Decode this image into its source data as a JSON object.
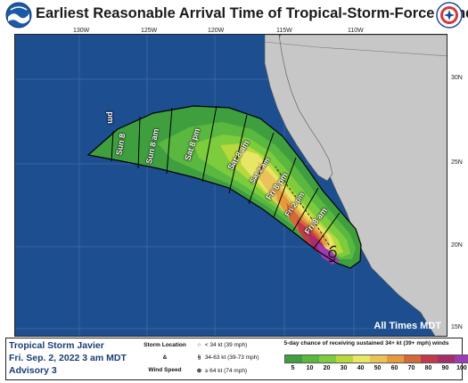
{
  "header": {
    "title": "Earliest Reasonable Arrival Time of Tropical-Storm-Force Winds",
    "logo_left_icon": "noaa-logo-icon",
    "logo_right_icon": "nws-logo-icon"
  },
  "map": {
    "longitude_labels": [
      "130W",
      "125W",
      "120W",
      "115W",
      "110W"
    ],
    "latitude_labels": [
      "30N",
      "25N",
      "20N",
      "15N"
    ],
    "time_labels": [
      "pm",
      "Sun 8",
      "Sun 8 am",
      "Sat 8 pm",
      "Sat 8 am",
      "Sat 2 am",
      "Fri 8 pm",
      "Fri 2 pm",
      "Fri 8 am"
    ],
    "all_times_label": "All Times MDT",
    "colors": {
      "ocean": "#1d4e8f",
      "land": "#c7c7c7",
      "outline": "#000000"
    }
  },
  "legend": {
    "storm_name": "Tropical Storm Javier",
    "date": "Fri. Sep. 2, 2022  3 am MDT",
    "advisory": "Advisory 3",
    "storm_location_label": "Storm Location",
    "ampersand": "&",
    "wind_speed_label": "Wind Speed",
    "speed_rows": [
      {
        "symbol": "○",
        "text": "< 34 kt (39 mph)"
      },
      {
        "symbol": "§",
        "text": "34-63 kt (39-73 mph)"
      },
      {
        "symbol": "⊛",
        "text": "≥ 64 kt (74 mph)"
      }
    ],
    "probability_title": "5-day chance of receiving sustained 34+ kt (39+ mph) winds",
    "probability_labels": [
      "5",
      "10",
      "20",
      "30",
      "40",
      "50",
      "60",
      "70",
      "80",
      "90",
      "100 %"
    ],
    "probability_colors": [
      "#3f9f3f",
      "#5ab840",
      "#7ccc3e",
      "#b8d93c",
      "#e8e665",
      "#e9c25a",
      "#e59b3c",
      "#d4693c",
      "#c03a4a",
      "#a42d6a",
      "#9c3bb3"
    ]
  }
}
